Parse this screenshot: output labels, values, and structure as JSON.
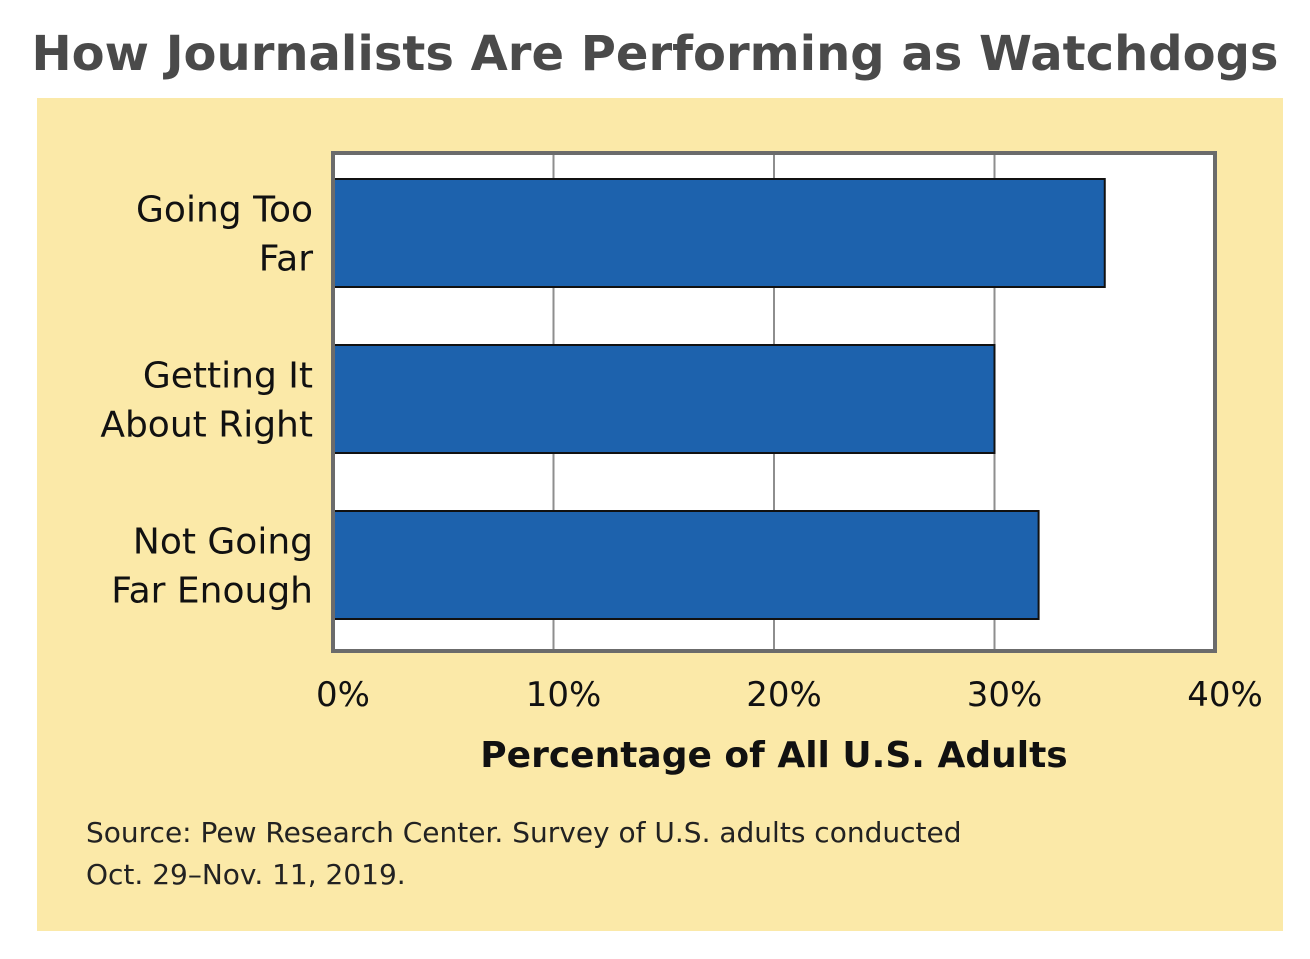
{
  "colors": {
    "title": "#4a4a4a",
    "panel_background": "#fbe9a8",
    "bar_fill": "#1d62ad",
    "bar_stroke": "#111111",
    "grid": "#8e8e8e",
    "frame": "#6b6b6b",
    "text": "#111111"
  },
  "chart_data": {
    "type": "bar",
    "orientation": "horizontal",
    "title": "How Journalists Are Performing as Watchdogs",
    "categories": [
      [
        "Going Too",
        "Far"
      ],
      [
        "Getting It",
        "About Right"
      ],
      [
        "Not Going",
        "Far Enough"
      ]
    ],
    "values": [
      35,
      30,
      32
    ],
    "xlabel": "Percentage of All U.S. Adults",
    "ylabel": "",
    "xlim": [
      0,
      40
    ],
    "xticks": [
      0,
      10,
      20,
      30,
      40
    ],
    "xtick_labels": [
      "0%",
      "10%",
      "20%",
      "30%",
      "40%"
    ],
    "grid": "vertical",
    "legend": "none"
  },
  "source": {
    "line1": "Source: Pew Research Center. Survey of U.S. adults conducted",
    "line2": "Oct. 29–Nov. 11, 2019."
  }
}
